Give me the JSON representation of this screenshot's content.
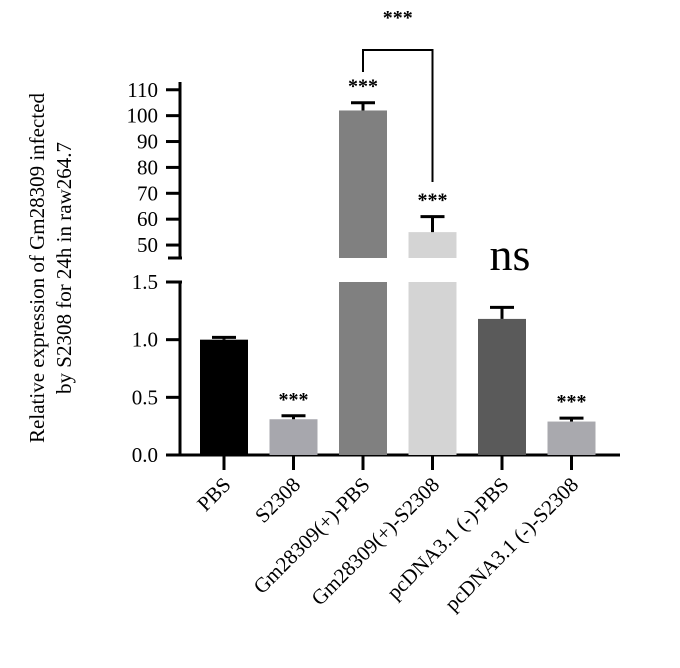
{
  "chart_data": {
    "type": "bar",
    "ylabel_lines": [
      "Relative expression of Gm28309 infected",
      "by S2308 for 24h in raw264.7"
    ],
    "categories": [
      "PBS",
      "S2308",
      "Gm28309(+)-PBS",
      "Gm28309(+)-S2308",
      "pcDNA3.1 (-)-PBS",
      "pcDNA3.1 (-)-S2308"
    ],
    "values": [
      1.0,
      0.31,
      102,
      55,
      1.18,
      0.29
    ],
    "errors": [
      0.02,
      0.03,
      3,
      6,
      0.1,
      0.03
    ],
    "colors": [
      "#000000",
      "#a7a7ad",
      "#808080",
      "#d4d4d4",
      "#5a5a5a",
      "#a9a9ae"
    ],
    "significance": [
      "",
      "***",
      "***",
      "***",
      "ns",
      "***"
    ],
    "bracket": {
      "from": 2,
      "to": 3,
      "label": "***"
    },
    "y_axis_broken": true,
    "lower_segment": {
      "ylim": [
        0,
        1.5
      ],
      "ticks": [
        "0.0",
        "0.5",
        "1.0",
        "1.5"
      ]
    },
    "upper_segment": {
      "ylim": [
        45,
        113
      ],
      "ticks": [
        "50",
        "60",
        "70",
        "80",
        "90",
        "100",
        "110"
      ]
    }
  }
}
